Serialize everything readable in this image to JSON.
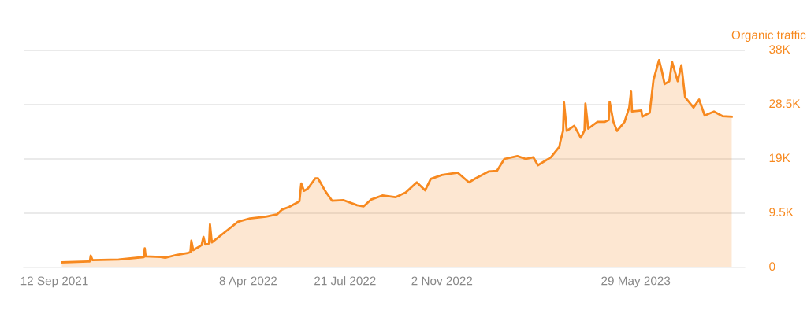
{
  "chart_data": {
    "type": "area",
    "ylabel": "Organic traffic",
    "x": [
      "2021-09-20",
      "2021-10-18",
      "2021-10-20",
      "2021-10-21",
      "2021-10-23",
      "2021-11-20",
      "2021-12-15",
      "2021-12-17",
      "2021-12-18",
      "2021-12-19",
      "2022-01-04",
      "2022-01-09",
      "2022-01-21",
      "2022-02-02",
      "2022-02-05",
      "2022-02-06",
      "2022-02-08",
      "2022-02-17",
      "2022-02-19",
      "2022-02-21",
      "2022-02-25",
      "2022-02-26",
      "2022-02-28",
      "2022-03-14",
      "2022-03-28",
      "2022-04-10",
      "2022-04-27",
      "2022-05-09",
      "2022-05-14",
      "2022-05-22",
      "2022-05-31",
      "2022-06-02",
      "2022-06-04",
      "2022-06-07",
      "2022-06-11",
      "2022-06-19",
      "2022-06-22",
      "2022-06-30",
      "2022-07-07",
      "2022-07-19",
      "2022-08-03",
      "2022-08-10",
      "2022-08-18",
      "2022-08-30",
      "2022-09-13",
      "2022-09-24",
      "2022-10-06",
      "2022-10-15",
      "2022-10-21",
      "2022-11-02",
      "2022-11-19",
      "2022-12-01",
      "2022-12-08",
      "2022-12-22",
      "2022-12-31",
      "2023-01-08",
      "2023-01-22",
      "2023-01-31",
      "2023-02-08",
      "2023-02-13",
      "2023-02-27",
      "2023-03-08",
      "2023-03-09",
      "2023-03-12",
      "2023-03-13",
      "2023-03-16",
      "2023-03-24",
      "2023-03-31",
      "2023-04-04",
      "2023-04-05",
      "2023-04-08",
      "2023-04-18",
      "2023-04-26",
      "2023-04-30",
      "2023-05-01",
      "2023-05-05",
      "2023-05-09",
      "2023-05-17",
      "2023-05-22",
      "2023-05-24",
      "2023-05-25",
      "2023-06-04",
      "2023-06-05",
      "2023-06-13",
      "2023-06-17",
      "2023-06-23",
      "2023-06-26",
      "2023-06-29",
      "2023-07-04",
      "2023-07-07",
      "2023-07-13",
      "2023-07-17",
      "2023-07-21",
      "2023-07-30",
      "2023-08-05",
      "2023-08-11",
      "2023-08-21",
      "2023-08-30",
      "2023-09-09"
    ],
    "series": [
      {
        "color": "#f7891f",
        "values": [
          900,
          1050,
          1060,
          2070,
          1280,
          1380,
          1790,
          1800,
          3350,
          1930,
          1830,
          1700,
          2200,
          2520,
          2700,
          4680,
          3030,
          3900,
          5370,
          4030,
          4200,
          7570,
          4400,
          6200,
          8000,
          8600,
          8900,
          9300,
          10100,
          10600,
          11400,
          11600,
          14700,
          13400,
          13800,
          15600,
          15600,
          13300,
          11700,
          11800,
          10900,
          10700,
          11900,
          12600,
          12300,
          13100,
          14900,
          13500,
          15500,
          16200,
          16600,
          14900,
          15600,
          16800,
          16900,
          19000,
          19500,
          19000,
          19300,
          17900,
          19300,
          21100,
          22000,
          23900,
          28900,
          23900,
          24800,
          22700,
          24000,
          28700,
          24300,
          25500,
          25500,
          25800,
          29000,
          25500,
          23900,
          25500,
          28000,
          30800,
          27300,
          27500,
          26400,
          27100,
          32800,
          36300,
          34400,
          32100,
          32600,
          36000,
          32600,
          35400,
          29800,
          28000,
          29400,
          26600,
          27300,
          26500,
          26400
        ]
      }
    ],
    "xlim": [
      "2021-08-10",
      "2023-09-23"
    ],
    "xticks": [
      {
        "value": "2021-09-12",
        "label": "12 Sep 2021"
      },
      {
        "value": "2022-04-08",
        "label": "8 Apr 2022"
      },
      {
        "value": "2022-07-21",
        "label": "21 Jul 2022"
      },
      {
        "value": "2022-11-02",
        "label": "2 Nov 2022"
      },
      {
        "value": "2023-05-29",
        "label": "29 May 2023"
      }
    ],
    "ylim": [
      0,
      38000
    ],
    "yticks": [
      0,
      {
        "value": 9500,
        "label": "9.5K"
      },
      {
        "value": 19000,
        "label": "19K"
      },
      {
        "value": 28500,
        "label": "28.5K"
      },
      {
        "value": 38000,
        "label": "38K"
      }
    ],
    "grid": "y"
  }
}
